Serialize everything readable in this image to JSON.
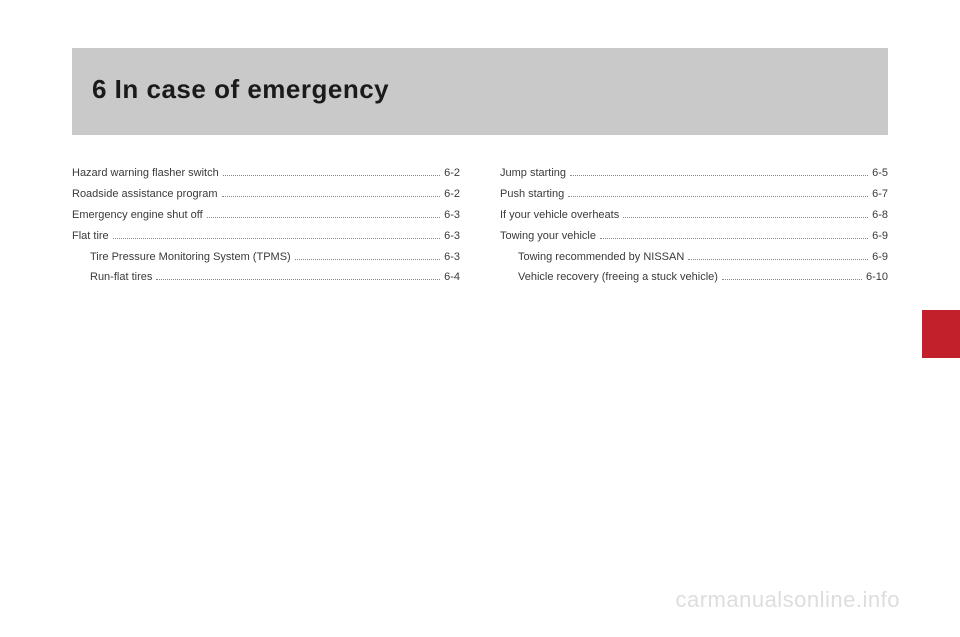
{
  "header": {
    "title": "6 In case of emergency"
  },
  "toc": {
    "left": [
      {
        "label": "Hazard warning flasher switch",
        "page": "6-2",
        "indent": false
      },
      {
        "label": "Roadside assistance program",
        "page": "6-2",
        "indent": false
      },
      {
        "label": "Emergency engine shut off",
        "page": "6-3",
        "indent": false
      },
      {
        "label": "Flat tire",
        "page": "6-3",
        "indent": false
      },
      {
        "label": "Tire Pressure Monitoring System (TPMS)",
        "page": "6-3",
        "indent": true
      },
      {
        "label": "Run-flat tires",
        "page": "6-4",
        "indent": true
      }
    ],
    "right": [
      {
        "label": "Jump starting",
        "page": "6-5",
        "indent": false
      },
      {
        "label": "Push starting",
        "page": "6-7",
        "indent": false
      },
      {
        "label": "If your vehicle overheats",
        "page": "6-8",
        "indent": false
      },
      {
        "label": "Towing your vehicle",
        "page": "6-9",
        "indent": false
      },
      {
        "label": "Towing recommended by NISSAN",
        "page": "6-9",
        "indent": true
      },
      {
        "label": "Vehicle recovery (freeing a stuck vehicle)",
        "page": "6-10",
        "indent": true
      }
    ]
  },
  "watermark": "carmanualsonline.info",
  "colors": {
    "header_bg": "#c9c9c9",
    "tab_bg": "#c2202a",
    "text": "#3a3a3a",
    "watermark": "#dddddd"
  }
}
